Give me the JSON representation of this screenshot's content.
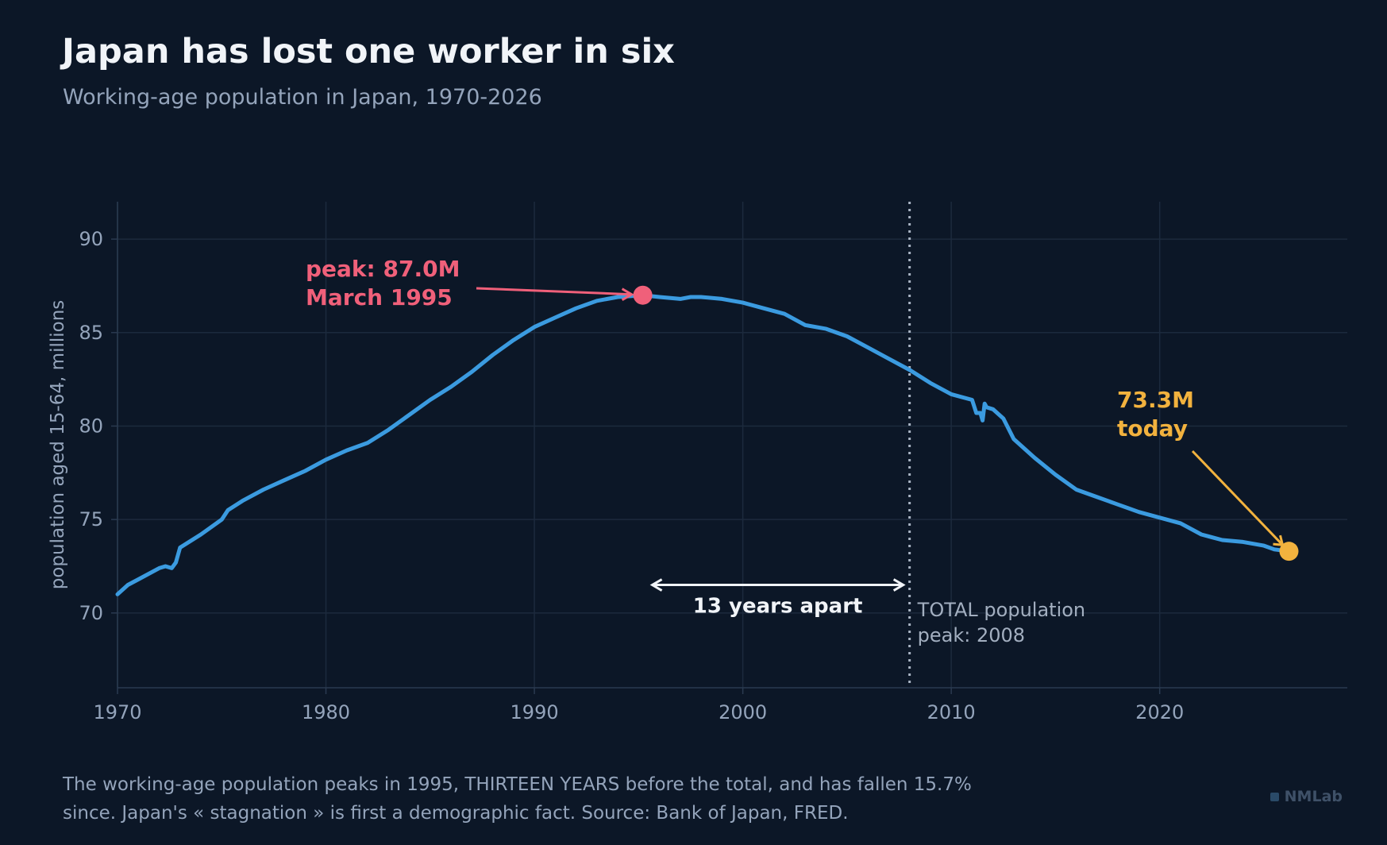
{
  "header": {
    "title": "Japan has lost one worker in six",
    "subtitle": "Working-age population in Japan, 1970-2026"
  },
  "footer": {
    "note_line1": "The working-age population peaks in 1995, THIRTEEN YEARS before the total, and has fallen 15.7%",
    "note_line2": "since. Japan's « stagnation » is first a demographic fact. Source: Bank of Japan, FRED.",
    "brand": "NMLab"
  },
  "colors": {
    "background": "#0c1727",
    "line": "#3b9be0",
    "peak": "#f0607a",
    "latest": "#f2b23e",
    "grid": "#1c2a3d",
    "axis_text": "#94a4bb",
    "vline": "#a9b4c4"
  },
  "chart_data": {
    "type": "line",
    "xlabel": "",
    "ylabel": "population aged 15-64, millions",
    "xlim": [
      1970,
      2029
    ],
    "ylim": [
      66,
      92
    ],
    "x_ticks": [
      "1970",
      "1980",
      "1990",
      "2000",
      "2010",
      "2020"
    ],
    "y_ticks": [
      "70",
      "75",
      "80",
      "85",
      "90"
    ],
    "grid": true,
    "legend": "none",
    "series": [
      {
        "x": [
          1970.0,
          1970.5,
          1971.0,
          1972.0,
          1972.3,
          1972.6,
          1972.8,
          1973.0,
          1974.0,
          1975.0,
          1975.3,
          1976.0,
          1977.0,
          1978.0,
          1979.0,
          1980.0,
          1981.0,
          1982.0,
          1983.0,
          1984.0,
          1985.0,
          1986.0,
          1987.0,
          1988.0,
          1989.0,
          1990.0,
          1991.0,
          1992.0,
          1993.0,
          1994.0,
          1995.2,
          1996.0,
          1997.0,
          1997.5,
          1998.0,
          1999.0,
          2000.0,
          2001.0,
          2002.0,
          2003.0,
          2004.0,
          2005.0,
          2006.0,
          2007.0,
          2008.0,
          2009.0,
          2010.0,
          2011.0,
          2011.2,
          2011.4,
          2011.5,
          2011.6,
          2011.7,
          2012.0,
          2012.5,
          2013.0,
          2014.0,
          2015.0,
          2016.0,
          2017.0,
          2018.0,
          2019.0,
          2020.0,
          2021.0,
          2022.0,
          2023.0,
          2024.0,
          2025.0,
          2025.5,
          2026.2
        ],
        "values": [
          71.0,
          71.5,
          71.8,
          72.4,
          72.5,
          72.4,
          72.7,
          73.5,
          74.2,
          75.0,
          75.5,
          76.0,
          76.6,
          77.1,
          77.6,
          78.2,
          78.7,
          79.1,
          79.8,
          80.6,
          81.4,
          82.1,
          82.9,
          83.8,
          84.6,
          85.3,
          85.8,
          86.3,
          86.7,
          86.9,
          87.0,
          86.9,
          86.8,
          86.9,
          86.9,
          86.8,
          86.6,
          86.3,
          86.0,
          85.4,
          85.2,
          84.8,
          84.2,
          83.6,
          83.0,
          82.3,
          81.7,
          81.4,
          80.7,
          80.7,
          80.3,
          81.2,
          81.0,
          80.9,
          80.4,
          79.3,
          78.3,
          77.4,
          76.6,
          76.2,
          75.8,
          75.4,
          75.1,
          74.8,
          74.2,
          73.9,
          73.8,
          73.6,
          73.4,
          73.3
        ]
      }
    ],
    "annotations": {
      "peak_line1": "peak: 87.0M",
      "peak_line2": "March 1995",
      "peak_x": 1995.2,
      "peak_y": 87.0,
      "latest_line1": "73.3M",
      "latest_line2": "today",
      "latest_x": 2026.2,
      "latest_y": 73.3,
      "gap_label": "13 years apart",
      "gap_from": 1995.2,
      "gap_to": 2008.0,
      "gap_y": 71.5,
      "vline_x": 2008.0,
      "vline_label1": "TOTAL population",
      "vline_label2": "peak: 2008"
    }
  }
}
